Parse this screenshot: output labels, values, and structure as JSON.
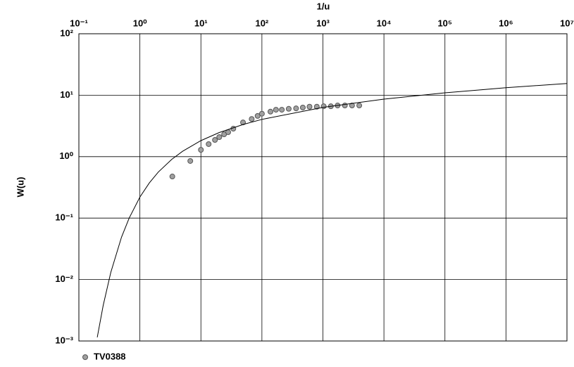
{
  "chart_data": {
    "type": "scatter",
    "xlabel": "1/u",
    "ylabel": "W(u)",
    "xlog": true,
    "ylog": true,
    "grid": true,
    "xlim": [
      0.1,
      10000000
    ],
    "ylim": [
      0.001,
      100
    ],
    "xticks": [
      {
        "value": 0.1,
        "label": "10⁻¹"
      },
      {
        "value": 1,
        "label": "10⁰"
      },
      {
        "value": 10,
        "label": "10¹"
      },
      {
        "value": 100,
        "label": "10²"
      },
      {
        "value": 1000,
        "label": "10³"
      },
      {
        "value": 10000,
        "label": "10⁴"
      },
      {
        "value": 100000,
        "label": "10⁵"
      },
      {
        "value": 1000000,
        "label": "10⁶"
      },
      {
        "value": 10000000,
        "label": "10⁷"
      }
    ],
    "yticks": [
      {
        "value": 0.001,
        "label": "10⁻³"
      },
      {
        "value": 0.01,
        "label": "10⁻²"
      },
      {
        "value": 0.1,
        "label": "10⁻¹"
      },
      {
        "value": 1,
        "label": "10⁰"
      },
      {
        "value": 10,
        "label": "10¹"
      },
      {
        "value": 100,
        "label": "10²"
      }
    ],
    "series": [
      {
        "name": "TV0388",
        "type": "scatter",
        "color": "#a0a0a0",
        "x": [
          3.4,
          6.7,
          10,
          13.4,
          17,
          20,
          24,
          28,
          34,
          49,
          68,
          85,
          100,
          138,
          170,
          212,
          275,
          363,
          468,
          603,
          794,
          1030,
          1350,
          1740,
          2290,
          3000,
          3940
        ],
        "values": [
          0.475,
          0.85,
          1.29,
          1.6,
          1.87,
          2.08,
          2.31,
          2.5,
          2.85,
          3.6,
          4.1,
          4.6,
          5.0,
          5.4,
          5.8,
          5.8,
          6.0,
          6.1,
          6.3,
          6.5,
          6.5,
          6.6,
          6.6,
          6.8,
          6.8,
          6.8,
          6.8
        ]
      },
      {
        "type": "line",
        "color": "#000000",
        "x": [
          0.2,
          0.25,
          0.333,
          0.5,
          0.667,
          1,
          1.4286,
          2,
          3.333,
          5,
          10,
          20,
          50,
          100,
          1000,
          10000,
          100000,
          1000000,
          10000000
        ],
        "values": [
          0.001148,
          0.003779,
          0.01305,
          0.0489,
          0.1,
          0.2194,
          0.3738,
          0.5598,
          0.9057,
          1.2227,
          1.8229,
          2.4679,
          3.3547,
          4.0379,
          6.3315,
          8.6332,
          10.9357,
          13.2383,
          15.5409
        ]
      }
    ]
  }
}
